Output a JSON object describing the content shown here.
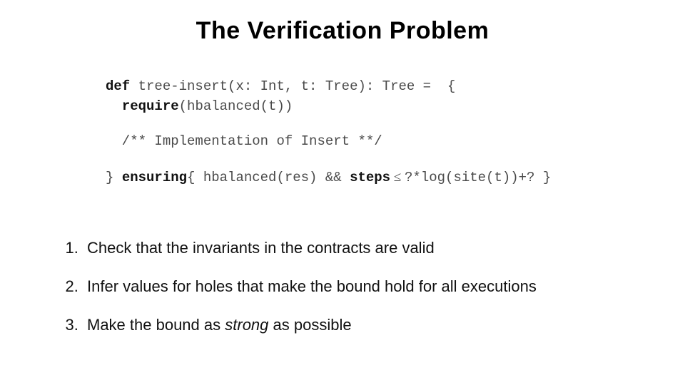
{
  "title": "The Verification Problem",
  "code": {
    "l1_def": "def",
    "l1_rest": " tree-insert(x: Int, t: Tree): Tree =  {",
    "l2_indent": "  ",
    "l2_kw": "require",
    "l2_rest": "(hbalanced(t))",
    "l3": "  /** Implementation of Insert **/",
    "l4_close": "} ",
    "l4_kw": "ensuring",
    "l4_open": "{ hbalanced(res) && ",
    "l4_steps": "steps",
    "l4_leq": " ≤ ",
    "l4_tail": "?*log(site(t))+? }"
  },
  "bullets": {
    "b1": "Check that the invariants in the contracts are valid",
    "b2": "Infer values for holes that make the bound hold for all executions",
    "b3_a": "Make the bound as ",
    "b3_em": "strong",
    "b3_b": " as possible"
  },
  "style": {
    "background_color": "#ffffff",
    "title_fontsize": 34,
    "code_fontsize": 19,
    "bullet_fontsize": 22,
    "code_color": "#4a4a4a",
    "keyword_color": "#111111",
    "text_color": "#111111"
  }
}
